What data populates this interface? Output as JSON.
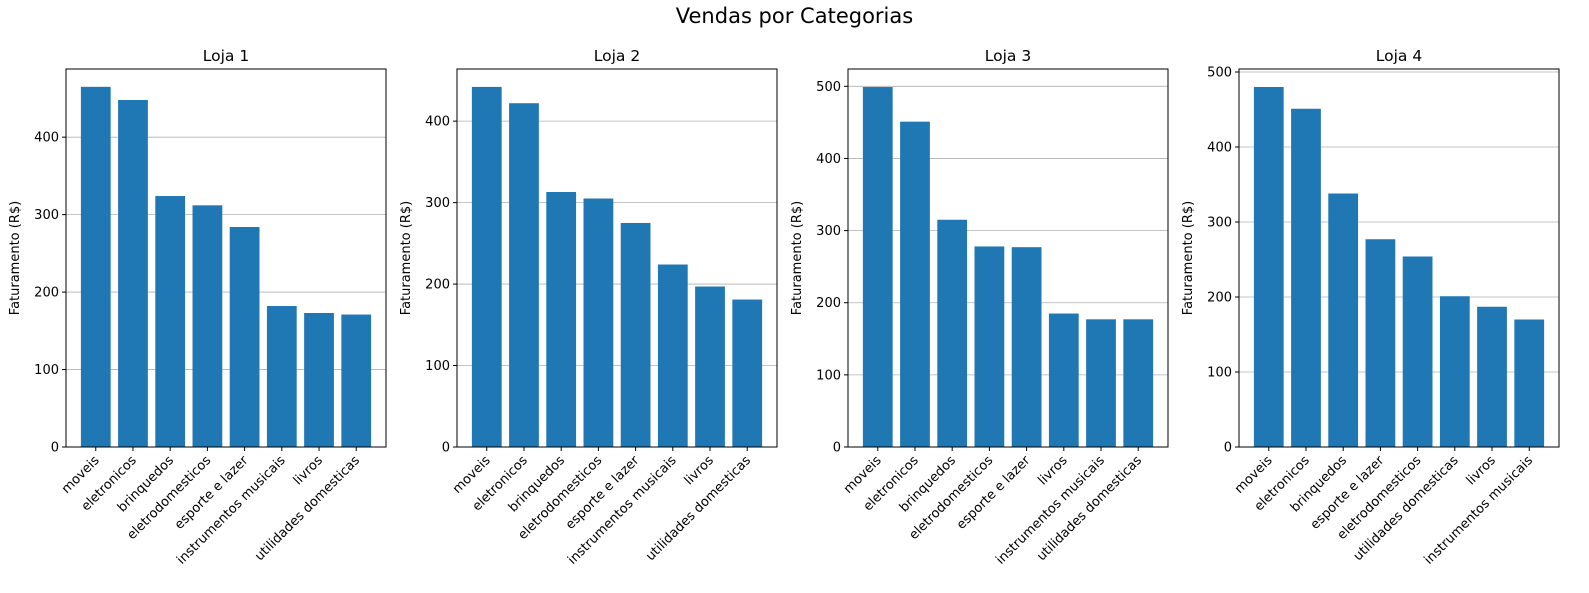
{
  "figure": {
    "title": "Vendas por Categorias"
  },
  "chart_data": [
    {
      "type": "bar",
      "title": "Loja 1",
      "xlabel": "",
      "ylabel": "Faturamento (R$)",
      "categories": [
        "moveis",
        "eletronicos",
        "brinquedos",
        "eletrodomesticos",
        "esporte e lazer",
        "instrumentos musicais",
        "livros",
        "utilidades domesticas"
      ],
      "values": [
        465,
        448,
        324,
        312,
        284,
        182,
        173,
        171
      ],
      "ylim": [
        0,
        488
      ],
      "yticks": [
        0,
        100,
        200,
        300,
        400
      ],
      "grid": "y",
      "color": "#1f77b4"
    },
    {
      "type": "bar",
      "title": "Loja 2",
      "xlabel": "",
      "ylabel": "Faturamento (R$)",
      "categories": [
        "moveis",
        "eletronicos",
        "brinquedos",
        "eletrodomesticos",
        "esporte e lazer",
        "instrumentos musicais",
        "livros",
        "utilidades domesticas"
      ],
      "values": [
        442,
        422,
        313,
        305,
        275,
        224,
        197,
        181
      ],
      "ylim": [
        0,
        464
      ],
      "yticks": [
        0,
        100,
        200,
        300,
        400
      ],
      "grid": "y",
      "color": "#1f77b4"
    },
    {
      "type": "bar",
      "title": "Loja 3",
      "xlabel": "",
      "ylabel": "Faturamento (R$)",
      "categories": [
        "moveis",
        "eletronicos",
        "brinquedos",
        "eletrodomesticos",
        "esporte e lazer",
        "livros",
        "instrumentos musicais",
        "utilidades domesticas"
      ],
      "values": [
        499,
        451,
        315,
        278,
        277,
        185,
        177,
        177
      ],
      "ylim": [
        0,
        524
      ],
      "yticks": [
        0,
        100,
        200,
        300,
        400,
        500
      ],
      "grid": "y",
      "color": "#1f77b4"
    },
    {
      "type": "bar",
      "title": "Loja 4",
      "xlabel": "",
      "ylabel": "Faturamento (R$)",
      "categories": [
        "moveis",
        "eletronicos",
        "brinquedos",
        "esporte e lazer",
        "eletrodomesticos",
        "utilidades domesticas",
        "livros",
        "instrumentos musicais"
      ],
      "values": [
        480,
        451,
        338,
        277,
        254,
        201,
        187,
        170
      ],
      "ylim": [
        0,
        504
      ],
      "yticks": [
        0,
        100,
        200,
        300,
        400,
        500
      ],
      "grid": "y",
      "color": "#1f77b4"
    }
  ]
}
